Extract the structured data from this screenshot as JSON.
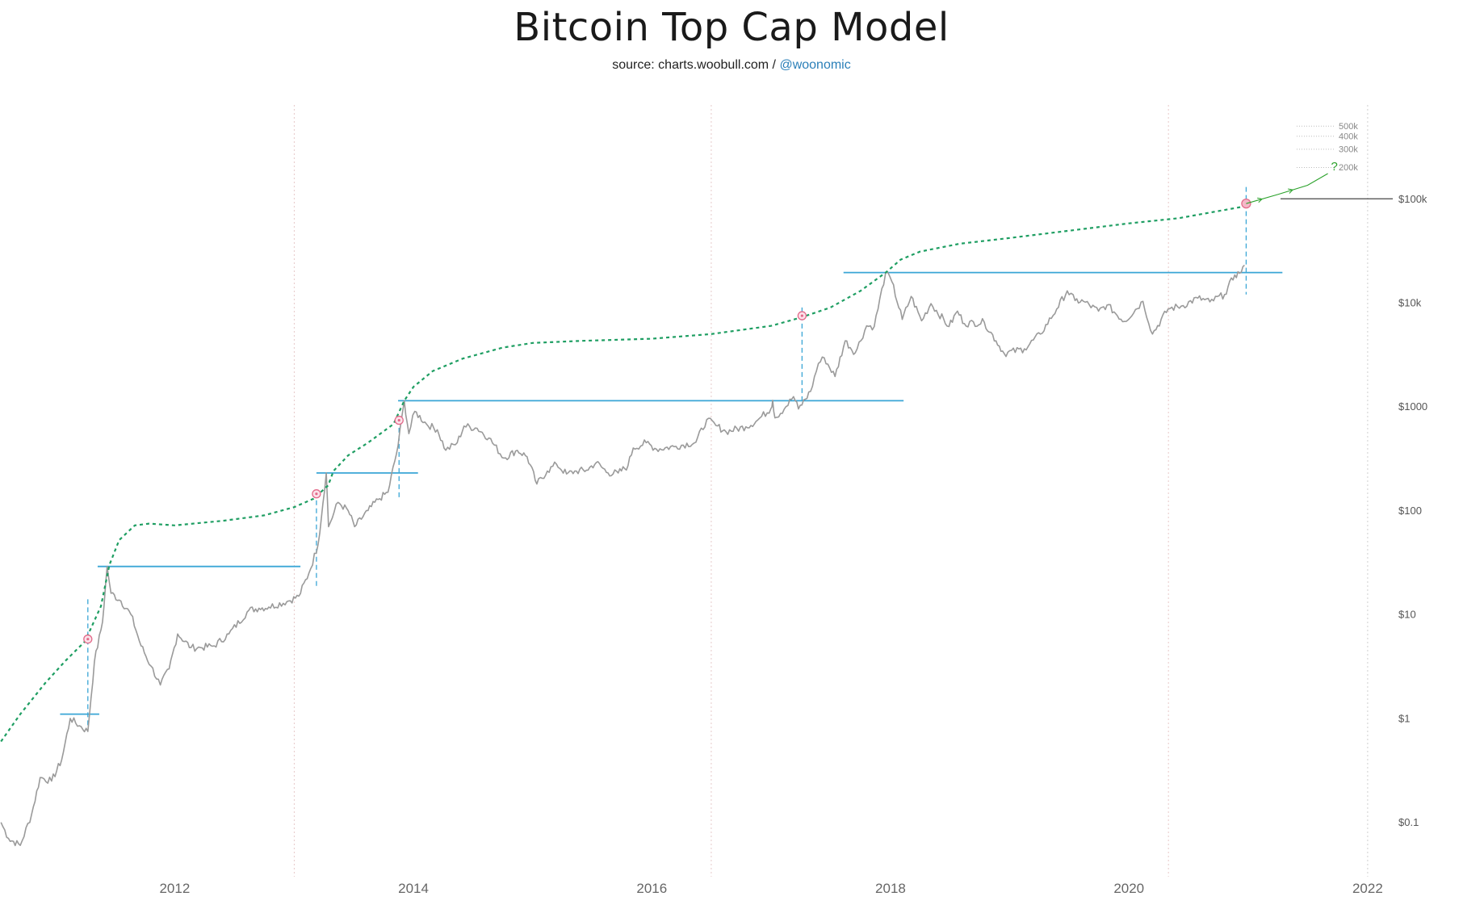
{
  "header": {
    "title": "Bitcoin Top Cap Model",
    "source_prefix": "source: charts.woobull.com /",
    "source_handle": "@woonomic"
  },
  "colors": {
    "price": "#9a9a9a",
    "top_cap": "#1e9e62",
    "cycle_levels": "#3aa6d6",
    "markers": "#e36a8a",
    "year_gridlines": "#e7c8c8",
    "projection": "#2aa12a"
  },
  "chart_data": {
    "type": "line",
    "y_scale": "log",
    "ylim": [
      0.03,
      800000
    ],
    "xlim": [
      "2010-07-15",
      "2022-10-20"
    ],
    "grid": "vertical dotted lines at 2013-01-01, 2016-07-01, 2020-05-01, 2022-01-01",
    "x_ticks": [
      "2012",
      "2014",
      "2016",
      "2018",
      "2020",
      "2022"
    ],
    "y_ticks": [
      {
        "value": 0.1,
        "label": "$0.1"
      },
      {
        "value": 1,
        "label": "$1"
      },
      {
        "value": 10,
        "label": "$10"
      },
      {
        "value": 100,
        "label": "$100"
      },
      {
        "value": 1000,
        "label": "$1000"
      },
      {
        "value": 10000,
        "label": "$10k"
      },
      {
        "value": 100000,
        "label": "$100k"
      }
    ],
    "minor_y_ticks": [
      {
        "value": 200000,
        "label": "200k"
      },
      {
        "value": 300000,
        "label": "300k"
      },
      {
        "value": 400000,
        "label": "400k"
      },
      {
        "value": 500000,
        "label": "500k"
      }
    ],
    "series": [
      {
        "key": "price",
        "points": [
          [
            "2010-07-18",
            0.1
          ],
          [
            "2010-08-10",
            0.07
          ],
          [
            "2010-09-15",
            0.06
          ],
          [
            "2010-10-20",
            0.12
          ],
          [
            "2010-11-15",
            0.27
          ],
          [
            "2010-12-20",
            0.25
          ],
          [
            "2011-01-20",
            0.4
          ],
          [
            "2011-02-15",
            1.0
          ],
          [
            "2011-03-15",
            0.85
          ],
          [
            "2011-04-10",
            0.75
          ],
          [
            "2011-04-30",
            3.5
          ],
          [
            "2011-05-25",
            8.5
          ],
          [
            "2011-06-08",
            29.0
          ],
          [
            "2011-06-20",
            16.0
          ],
          [
            "2011-07-20",
            13.5
          ],
          [
            "2011-08-20",
            10.0
          ],
          [
            "2011-09-20",
            5.0
          ],
          [
            "2011-10-20",
            3.2
          ],
          [
            "2011-11-18",
            2.1
          ],
          [
            "2011-12-15",
            3.0
          ],
          [
            "2012-01-10",
            6.5
          ],
          [
            "2012-02-20",
            4.8
          ],
          [
            "2012-03-20",
            4.8
          ],
          [
            "2012-05-01",
            5.0
          ],
          [
            "2012-06-15",
            6.5
          ],
          [
            "2012-08-15",
            11.0
          ],
          [
            "2012-09-15",
            11.5
          ],
          [
            "2012-10-15",
            11.8
          ],
          [
            "2012-12-15",
            13.5
          ],
          [
            "2013-01-15",
            15.0
          ],
          [
            "2013-02-15",
            25.0
          ],
          [
            "2013-03-15",
            47.0
          ],
          [
            "2013-04-09",
            230.0
          ],
          [
            "2013-04-16",
            70.0
          ],
          [
            "2013-05-15",
            120.0
          ],
          [
            "2013-06-15",
            100.0
          ],
          [
            "2013-07-05",
            70.0
          ],
          [
            "2013-08-15",
            100.0
          ],
          [
            "2013-09-15",
            128.0
          ],
          [
            "2013-10-15",
            150.0
          ],
          [
            "2013-11-15",
            420.0
          ],
          [
            "2013-12-04",
            1140.0
          ],
          [
            "2013-12-18",
            550.0
          ],
          [
            "2014-01-05",
            900.0
          ],
          [
            "2014-02-10",
            680.0
          ],
          [
            "2014-03-15",
            600.0
          ],
          [
            "2014-04-10",
            380.0
          ],
          [
            "2014-05-15",
            450.0
          ],
          [
            "2014-06-05",
            650.0
          ],
          [
            "2014-07-15",
            620.0
          ],
          [
            "2014-08-20",
            500.0
          ],
          [
            "2014-10-05",
            320.0
          ],
          [
            "2014-11-15",
            380.0
          ],
          [
            "2014-12-15",
            330.0
          ],
          [
            "2015-01-14",
            180.0
          ],
          [
            "2015-02-15",
            240.0
          ],
          [
            "2015-03-15",
            280.0
          ],
          [
            "2015-04-15",
            225.0
          ],
          [
            "2015-05-15",
            240.0
          ],
          [
            "2015-06-15",
            245.0
          ],
          [
            "2015-07-15",
            290.0
          ],
          [
            "2015-08-20",
            230.0
          ],
          [
            "2015-09-20",
            230.0
          ],
          [
            "2015-10-20",
            270.0
          ],
          [
            "2015-11-05",
            400.0
          ],
          [
            "2015-12-15",
            450.0
          ],
          [
            "2016-01-15",
            390.0
          ],
          [
            "2016-03-15",
            415.0
          ],
          [
            "2016-05-15",
            455.0
          ],
          [
            "2016-06-17",
            750.0
          ],
          [
            "2016-07-15",
            660.0
          ],
          [
            "2016-08-15",
            575.0
          ],
          [
            "2016-10-15",
            640.0
          ],
          [
            "2016-11-15",
            720.0
          ],
          [
            "2016-12-31",
            960.0
          ],
          [
            "2017-01-05",
            1150.0
          ],
          [
            "2017-01-12",
            780.0
          ],
          [
            "2017-02-15",
            1000.0
          ],
          [
            "2017-03-10",
            1250.0
          ],
          [
            "2017-03-25",
            950.0
          ],
          [
            "2017-05-01",
            1400.0
          ],
          [
            "2017-05-25",
            2600.0
          ],
          [
            "2017-06-12",
            2950.0
          ],
          [
            "2017-07-15",
            1950.0
          ],
          [
            "2017-08-15",
            4300.0
          ],
          [
            "2017-09-15",
            3300.0
          ],
          [
            "2017-10-20",
            6000.0
          ],
          [
            "2017-11-12",
            5900.0
          ],
          [
            "2017-12-17",
            19500.0
          ],
          [
            "2018-01-05",
            16000.0
          ],
          [
            "2018-02-06",
            6900.0
          ],
          [
            "2018-03-05",
            11500.0
          ],
          [
            "2018-04-06",
            6700.0
          ],
          [
            "2018-05-05",
            9800.0
          ],
          [
            "2018-06-29",
            5900.0
          ],
          [
            "2018-07-25",
            8300.0
          ],
          [
            "2018-08-15",
            6300.0
          ],
          [
            "2018-10-15",
            6500.0
          ],
          [
            "2018-11-20",
            4300.0
          ],
          [
            "2018-12-15",
            3250.0
          ],
          [
            "2019-02-15",
            3600.0
          ],
          [
            "2019-04-05",
            5000.0
          ],
          [
            "2019-05-25",
            8700.0
          ],
          [
            "2019-06-26",
            13000.0
          ],
          [
            "2019-07-20",
            10500.0
          ],
          [
            "2019-08-15",
            10300.0
          ],
          [
            "2019-09-30",
            8300.0
          ],
          [
            "2019-10-26",
            9500.0
          ],
          [
            "2019-12-18",
            6600.0
          ],
          [
            "2020-02-13",
            10300.0
          ],
          [
            "2020-03-13",
            5000.0
          ],
          [
            "2020-04-30",
            8700.0
          ],
          [
            "2020-06-15",
            9400.0
          ],
          [
            "2020-07-30",
            11100.0
          ],
          [
            "2020-09-05",
            10200.0
          ],
          [
            "2020-10-20",
            12000.0
          ],
          [
            "2020-11-20",
            18500.0
          ],
          [
            "2020-12-05",
            19200.0
          ],
          [
            "2020-12-20",
            23000.0
          ]
        ]
      },
      {
        "key": "top_cap",
        "style": "dashed",
        "points": [
          [
            "2010-07-18",
            0.6
          ],
          [
            "2010-09-15",
            1.1
          ],
          [
            "2010-12-01",
            2.2
          ],
          [
            "2011-02-01",
            3.6
          ],
          [
            "2011-04-01",
            5.5
          ],
          [
            "2011-05-20",
            12.0
          ],
          [
            "2011-06-15",
            30.0
          ],
          [
            "2011-07-15",
            52.0
          ],
          [
            "2011-09-01",
            72.0
          ],
          [
            "2011-10-15",
            75.0
          ],
          [
            "2012-01-01",
            72.0
          ],
          [
            "2012-06-01",
            80.0
          ],
          [
            "2012-10-01",
            90.0
          ],
          [
            "2013-01-01",
            108.0
          ],
          [
            "2013-03-01",
            130.0
          ],
          [
            "2013-04-15",
            175.0
          ],
          [
            "2013-05-01",
            240.0
          ],
          [
            "2013-06-15",
            340.0
          ],
          [
            "2013-08-15",
            450.0
          ],
          [
            "2013-11-01",
            680.0
          ],
          [
            "2013-12-04",
            1140.0
          ],
          [
            "2014-01-01",
            1550.0
          ],
          [
            "2014-03-01",
            2200.0
          ],
          [
            "2014-06-01",
            2900.0
          ],
          [
            "2014-10-01",
            3700.0
          ],
          [
            "2015-01-01",
            4100.0
          ],
          [
            "2015-06-01",
            4300.0
          ],
          [
            "2016-01-01",
            4500.0
          ],
          [
            "2016-07-01",
            5000.0
          ],
          [
            "2017-01-01",
            6000.0
          ],
          [
            "2017-04-01",
            7200.0
          ],
          [
            "2017-07-01",
            9000.0
          ],
          [
            "2017-10-01",
            13000.0
          ],
          [
            "2017-12-17",
            19500.0
          ],
          [
            "2018-02-01",
            26000.0
          ],
          [
            "2018-04-01",
            31000.0
          ],
          [
            "2018-08-01",
            37000.0
          ],
          [
            "2019-01-01",
            42000.0
          ],
          [
            "2019-06-01",
            48000.0
          ],
          [
            "2020-01-01",
            58000.0
          ],
          [
            "2020-06-01",
            65000.0
          ],
          [
            "2020-12-25",
            85000.0
          ]
        ]
      }
    ],
    "cycle_levels": [
      {
        "value": 1.1,
        "start": "2011-01-15",
        "end": "2011-05-15"
      },
      {
        "value": 29.0,
        "start": "2011-05-10",
        "end": "2013-01-20"
      },
      {
        "value": 230.0,
        "start": "2013-03-10",
        "end": "2014-01-15"
      },
      {
        "value": 1140.0,
        "start": "2013-11-15",
        "end": "2018-02-10"
      },
      {
        "value": 19500.0,
        "start": "2017-08-10",
        "end": "2021-04-15"
      }
    ],
    "markers": [
      {
        "date": "2011-04-10",
        "value": 5.8,
        "range": [
          0.8,
          14.0
        ]
      },
      {
        "date": "2013-03-10",
        "value": 145.0,
        "range": [
          18.0,
          150.0
        ]
      },
      {
        "date": "2013-11-18",
        "value": 740.0,
        "range": [
          130.0,
          750.0
        ]
      },
      {
        "date": "2017-04-05",
        "value": 7500.0,
        "range": [
          1050.0,
          9000.0
        ]
      },
      {
        "date": "2020-12-25",
        "value": 90000.0,
        "range": [
          12000.0,
          130000.0
        ]
      }
    ],
    "projection": {
      "points": [
        [
          "2020-12-25",
          90000.0
        ],
        [
          "2021-04-01",
          110000.0
        ],
        [
          "2021-07-01",
          135000.0
        ],
        [
          "2021-09-01",
          175000.0
        ]
      ],
      "label": "?"
    }
  }
}
